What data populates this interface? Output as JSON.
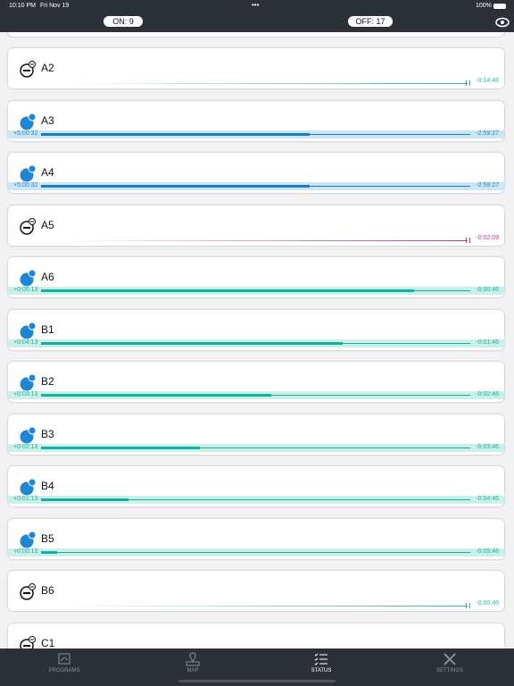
{
  "status_bar": {
    "time": "10:10 PM",
    "date": "Fri Nov 19",
    "battery": "100%"
  },
  "header": {
    "on": "ON: 9",
    "off": "OFF: 17"
  },
  "rows": [
    {
      "name": "A2",
      "state": "off",
      "color": "#2fb5a2",
      "remaining": "-0:14:46"
    },
    {
      "name": "A3",
      "state": "on",
      "color": "#1a7ec2",
      "elapsed": "+5:00:32",
      "remaining": "-2:59:27",
      "progress": 0.626
    },
    {
      "name": "A4",
      "state": "on",
      "color": "#1a7ec2",
      "elapsed": "+5:00:32",
      "remaining": "-2:59:27",
      "progress": 0.626
    },
    {
      "name": "A5",
      "state": "off",
      "color": "#c2338f",
      "remaining": "-0:02:09"
    },
    {
      "name": "A6",
      "state": "on",
      "color": "#19b09a",
      "elapsed": "+0:05:13",
      "remaining": "-0:00:46",
      "progress": 0.869
    },
    {
      "name": "B1",
      "state": "on",
      "color": "#19b09a",
      "elapsed": "+0:04:13",
      "remaining": "-0:01:46",
      "progress": 0.703
    },
    {
      "name": "B2",
      "state": "on",
      "color": "#19b09a",
      "elapsed": "+0:03:13",
      "remaining": "-0:02:46",
      "progress": 0.536
    },
    {
      "name": "B3",
      "state": "on",
      "color": "#19b09a",
      "elapsed": "+0:02:13",
      "remaining": "-0:03:46",
      "progress": 0.37
    },
    {
      "name": "B4",
      "state": "on",
      "color": "#19b09a",
      "elapsed": "+0:01:13",
      "remaining": "-0:04:46",
      "progress": 0.203
    },
    {
      "name": "B5",
      "state": "on",
      "color": "#19b09a",
      "elapsed": "+0:00:13",
      "remaining": "-0:05:46",
      "progress": 0.037
    },
    {
      "name": "B6",
      "state": "off",
      "color": "#2fb5a2",
      "remaining": "-0:00:46"
    },
    {
      "name": "C1",
      "state": "off"
    }
  ],
  "tabs": [
    "PROGRAMS",
    "MAP",
    "STATUS",
    "SETTINGS"
  ],
  "active_tab": 2
}
